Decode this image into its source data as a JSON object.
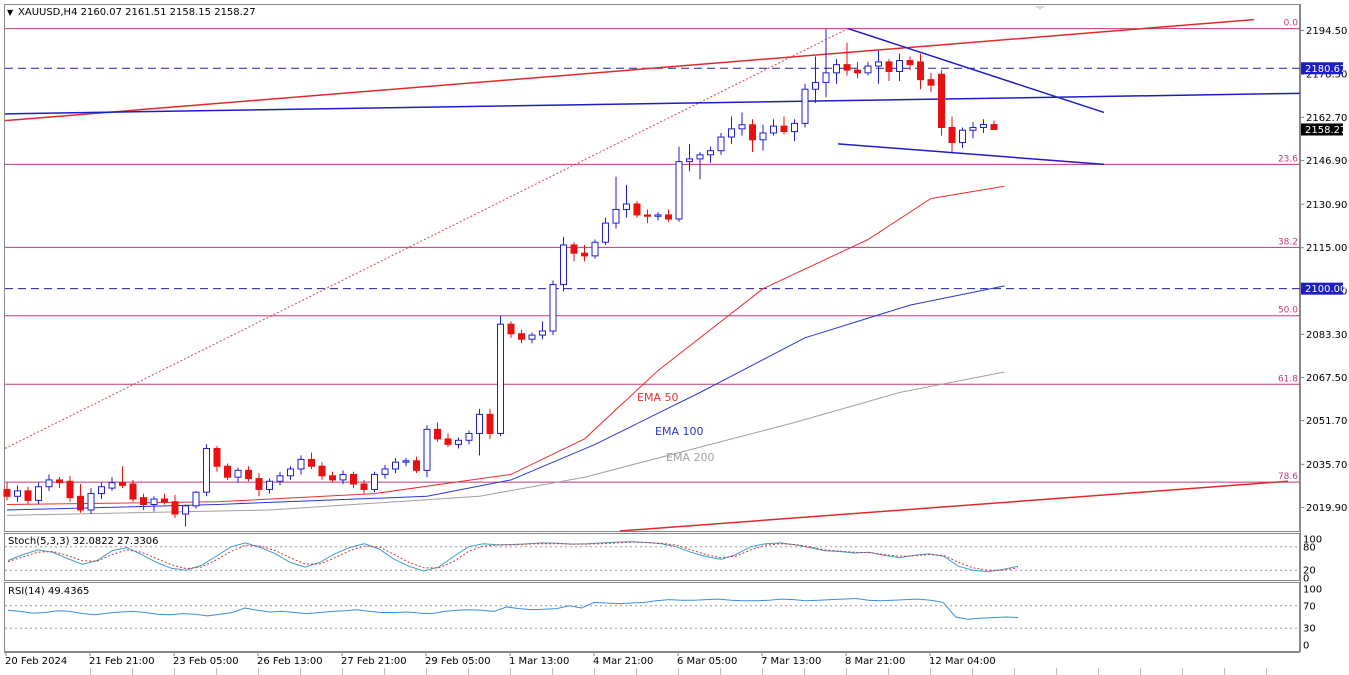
{
  "window": {
    "symbol_info": "XAUUSD,H4  2160.07 2161.51 2158.15 2158.27"
  },
  "chart_data": {
    "type": "candlestick",
    "symbol": "XAUUSD",
    "timeframe": "H4",
    "ohlc_last": {
      "open": 2160.07,
      "high": 2161.51,
      "low": 2158.15,
      "close": 2158.27
    },
    "price_axis_ticks": [
      "2194.50",
      "2178.50",
      "2162.70",
      "2146.90",
      "2130.90",
      "2115.00",
      "2099.10",
      "2083.30",
      "2067.50",
      "2051.70",
      "2035.70",
      "2019.90"
    ],
    "price_range": [
      2011,
      2199
    ],
    "tags": [
      {
        "price": 2180.67,
        "label": "2180.67",
        "kind": "hline-dashed"
      },
      {
        "price": 2158.27,
        "label": "2158.27",
        "kind": "current"
      },
      {
        "price": 2100.0,
        "label": "2100.00",
        "kind": "hline-dashed"
      }
    ],
    "fib_levels": [
      {
        "level": "0.0",
        "price": 2195.2
      },
      {
        "level": "23.6",
        "price": 2145.5
      },
      {
        "level": "38.2",
        "price": 2115.1
      },
      {
        "level": "50.0",
        "price": 2090.1
      },
      {
        "level": "61.8",
        "price": 2065.0
      },
      {
        "level": "78.6",
        "price": 2029.2
      }
    ],
    "time_labels": [
      "20 Feb 2024",
      "21 Feb 21:00",
      "23 Feb 05:00",
      "26 Feb 13:00",
      "27 Feb 21:00",
      "29 Feb 05:00",
      "1 Mar 13:00",
      "4 Mar 21:00",
      "6 Mar 05:00",
      "7 Mar 13:00",
      "8 Mar 21:00",
      "12 Mar 04:00"
    ],
    "ema_labels": {
      "ema50": "EMA 50",
      "ema100": "EMA 100",
      "ema200": "EMA 200"
    },
    "candles": [
      {
        "o": 2026.5,
        "h": 2029.0,
        "l": 2022.5,
        "c": 2024.0
      },
      {
        "o": 2024.0,
        "h": 2028.0,
        "l": 2022.0,
        "c": 2026.0
      },
      {
        "o": 2026.0,
        "h": 2027.5,
        "l": 2021.0,
        "c": 2022.5
      },
      {
        "o": 2022.5,
        "h": 2029.0,
        "l": 2021.0,
        "c": 2027.5
      },
      {
        "o": 2027.5,
        "h": 2032.0,
        "l": 2026.0,
        "c": 2030.0
      },
      {
        "o": 2030.0,
        "h": 2031.0,
        "l": 2027.0,
        "c": 2029.0
      },
      {
        "o": 2029.5,
        "h": 2031.5,
        "l": 2022.0,
        "c": 2023.5
      },
      {
        "o": 2024.0,
        "h": 2028.5,
        "l": 2018.0,
        "c": 2019.0
      },
      {
        "o": 2019.0,
        "h": 2027.0,
        "l": 2017.5,
        "c": 2025.0
      },
      {
        "o": 2025.0,
        "h": 2029.0,
        "l": 2023.0,
        "c": 2027.5
      },
      {
        "o": 2027.0,
        "h": 2031.0,
        "l": 2026.0,
        "c": 2029.0
      },
      {
        "o": 2029.0,
        "h": 2035.0,
        "l": 2027.0,
        "c": 2028.0
      },
      {
        "o": 2028.5,
        "h": 2030.0,
        "l": 2022.0,
        "c": 2023.0
      },
      {
        "o": 2023.5,
        "h": 2025.0,
        "l": 2019.0,
        "c": 2021.0
      },
      {
        "o": 2021.0,
        "h": 2024.0,
        "l": 2018.5,
        "c": 2023.0
      },
      {
        "o": 2023.0,
        "h": 2025.0,
        "l": 2021.0,
        "c": 2022.0
      },
      {
        "o": 2022.0,
        "h": 2024.5,
        "l": 2016.0,
        "c": 2017.5
      },
      {
        "o": 2017.5,
        "h": 2021.0,
        "l": 2013.0,
        "c": 2020.5
      },
      {
        "o": 2020.5,
        "h": 2026.0,
        "l": 2019.5,
        "c": 2025.5
      },
      {
        "o": 2025.5,
        "h": 2043.0,
        "l": 2024.0,
        "c": 2041.5
      },
      {
        "o": 2041.5,
        "h": 2042.5,
        "l": 2033.0,
        "c": 2035.0
      },
      {
        "o": 2035.0,
        "h": 2036.0,
        "l": 2030.0,
        "c": 2031.0
      },
      {
        "o": 2031.0,
        "h": 2034.5,
        "l": 2029.0,
        "c": 2033.5
      },
      {
        "o": 2033.5,
        "h": 2035.0,
        "l": 2029.5,
        "c": 2030.5
      },
      {
        "o": 2030.5,
        "h": 2032.5,
        "l": 2024.0,
        "c": 2026.5
      },
      {
        "o": 2026.5,
        "h": 2030.5,
        "l": 2025.0,
        "c": 2029.5
      },
      {
        "o": 2029.5,
        "h": 2033.0,
        "l": 2028.0,
        "c": 2031.5
      },
      {
        "o": 2031.5,
        "h": 2035.0,
        "l": 2030.0,
        "c": 2034.0
      },
      {
        "o": 2034.0,
        "h": 2039.0,
        "l": 2032.0,
        "c": 2037.5
      },
      {
        "o": 2037.5,
        "h": 2040.0,
        "l": 2034.0,
        "c": 2035.0
      },
      {
        "o": 2035.0,
        "h": 2036.5,
        "l": 2030.0,
        "c": 2031.5
      },
      {
        "o": 2031.5,
        "h": 2033.0,
        "l": 2029.0,
        "c": 2030.0
      },
      {
        "o": 2030.0,
        "h": 2033.5,
        "l": 2028.5,
        "c": 2032.0
      },
      {
        "o": 2032.0,
        "h": 2033.0,
        "l": 2027.0,
        "c": 2028.5
      },
      {
        "o": 2028.5,
        "h": 2030.0,
        "l": 2025.0,
        "c": 2026.5
      },
      {
        "o": 2026.5,
        "h": 2033.0,
        "l": 2025.5,
        "c": 2032.0
      },
      {
        "o": 2032.0,
        "h": 2035.5,
        "l": 2030.5,
        "c": 2034.0
      },
      {
        "o": 2034.0,
        "h": 2038.0,
        "l": 2032.5,
        "c": 2036.5
      },
      {
        "o": 2036.5,
        "h": 2038.0,
        "l": 2035.0,
        "c": 2037.0
      },
      {
        "o": 2037.0,
        "h": 2038.5,
        "l": 2032.5,
        "c": 2033.5
      },
      {
        "o": 2033.5,
        "h": 2050.0,
        "l": 2031.0,
        "c": 2048.5
      },
      {
        "o": 2048.5,
        "h": 2051.0,
        "l": 2044.0,
        "c": 2045.0
      },
      {
        "o": 2045.0,
        "h": 2047.0,
        "l": 2042.0,
        "c": 2043.0
      },
      {
        "o": 2043.0,
        "h": 2045.5,
        "l": 2041.5,
        "c": 2044.5
      },
      {
        "o": 2044.5,
        "h": 2048.0,
        "l": 2043.0,
        "c": 2047.0
      },
      {
        "o": 2047.0,
        "h": 2056.0,
        "l": 2039.0,
        "c": 2054.0
      },
      {
        "o": 2054.0,
        "h": 2056.0,
        "l": 2045.0,
        "c": 2047.0
      },
      {
        "o": 2047.0,
        "h": 2090.0,
        "l": 2046.0,
        "c": 2087.0
      },
      {
        "o": 2087.0,
        "h": 2088.0,
        "l": 2082.0,
        "c": 2083.5
      },
      {
        "o": 2083.5,
        "h": 2085.0,
        "l": 2080.0,
        "c": 2081.5
      },
      {
        "o": 2081.5,
        "h": 2084.0,
        "l": 2080.0,
        "c": 2083.0
      },
      {
        "o": 2083.0,
        "h": 2088.0,
        "l": 2081.5,
        "c": 2084.5
      },
      {
        "o": 2084.5,
        "h": 2103.0,
        "l": 2083.0,
        "c": 2101.5
      },
      {
        "o": 2101.5,
        "h": 2119.0,
        "l": 2099.0,
        "c": 2116.0
      },
      {
        "o": 2116.0,
        "h": 2117.0,
        "l": 2110.0,
        "c": 2113.0
      },
      {
        "o": 2113.0,
        "h": 2116.0,
        "l": 2110.0,
        "c": 2112.0
      },
      {
        "o": 2112.0,
        "h": 2118.0,
        "l": 2111.0,
        "c": 2117.0
      },
      {
        "o": 2117.0,
        "h": 2126.0,
        "l": 2116.0,
        "c": 2124.0
      },
      {
        "o": 2124.0,
        "h": 2141.0,
        "l": 2122.0,
        "c": 2129.0
      },
      {
        "o": 2129.0,
        "h": 2138.0,
        "l": 2126.0,
        "c": 2131.0
      },
      {
        "o": 2131.0,
        "h": 2132.0,
        "l": 2126.0,
        "c": 2127.0
      },
      {
        "o": 2127.0,
        "h": 2129.0,
        "l": 2124.0,
        "c": 2126.5
      },
      {
        "o": 2126.5,
        "h": 2128.0,
        "l": 2125.0,
        "c": 2127.0
      },
      {
        "o": 2127.0,
        "h": 2129.0,
        "l": 2124.5,
        "c": 2125.5
      },
      {
        "o": 2125.5,
        "h": 2152.0,
        "l": 2124.5,
        "c": 2146.5
      },
      {
        "o": 2146.5,
        "h": 2153.0,
        "l": 2143.0,
        "c": 2147.5
      },
      {
        "o": 2147.5,
        "h": 2150.0,
        "l": 2140.0,
        "c": 2149.0
      },
      {
        "o": 2149.0,
        "h": 2152.0,
        "l": 2146.0,
        "c": 2150.5
      },
      {
        "o": 2150.5,
        "h": 2157.0,
        "l": 2149.0,
        "c": 2155.5
      },
      {
        "o": 2155.5,
        "h": 2163.0,
        "l": 2153.0,
        "c": 2158.5
      },
      {
        "o": 2158.5,
        "h": 2164.5,
        "l": 2156.0,
        "c": 2160.0
      },
      {
        "o": 2160.0,
        "h": 2162.0,
        "l": 2150.0,
        "c": 2154.5
      },
      {
        "o": 2154.5,
        "h": 2160.0,
        "l": 2150.5,
        "c": 2157.0
      },
      {
        "o": 2157.0,
        "h": 2162.0,
        "l": 2156.0,
        "c": 2159.5
      },
      {
        "o": 2159.5,
        "h": 2163.0,
        "l": 2156.5,
        "c": 2157.5
      },
      {
        "o": 2157.5,
        "h": 2162.0,
        "l": 2154.0,
        "c": 2160.5
      },
      {
        "o": 2160.5,
        "h": 2175.0,
        "l": 2159.0,
        "c": 2173.0
      },
      {
        "o": 2173.0,
        "h": 2185.0,
        "l": 2168.0,
        "c": 2175.5
      },
      {
        "o": 2175.5,
        "h": 2195.2,
        "l": 2170.0,
        "c": 2179.0
      },
      {
        "o": 2179.0,
        "h": 2184.0,
        "l": 2175.0,
        "c": 2182.0
      },
      {
        "o": 2182.0,
        "h": 2190.0,
        "l": 2178.0,
        "c": 2180.0
      },
      {
        "o": 2180.0,
        "h": 2183.0,
        "l": 2177.0,
        "c": 2179.0
      },
      {
        "o": 2179.0,
        "h": 2183.0,
        "l": 2178.0,
        "c": 2181.5
      },
      {
        "o": 2181.5,
        "h": 2187.0,
        "l": 2175.0,
        "c": 2183.0
      },
      {
        "o": 2183.0,
        "h": 2184.0,
        "l": 2176.0,
        "c": 2179.5
      },
      {
        "o": 2179.5,
        "h": 2186.0,
        "l": 2176.0,
        "c": 2183.5
      },
      {
        "o": 2183.5,
        "h": 2185.0,
        "l": 2180.0,
        "c": 2182.0
      },
      {
        "o": 2183.0,
        "h": 2186.0,
        "l": 2173.0,
        "c": 2176.5
      },
      {
        "o": 2176.5,
        "h": 2179.0,
        "l": 2172.0,
        "c": 2174.5
      },
      {
        "o": 2178.5,
        "h": 2180.0,
        "l": 2156.0,
        "c": 2159.0
      },
      {
        "o": 2159.0,
        "h": 2163.0,
        "l": 2150.0,
        "c": 2153.5
      },
      {
        "o": 2153.5,
        "h": 2159.0,
        "l": 2151.5,
        "c": 2158.0
      },
      {
        "o": 2158.0,
        "h": 2161.0,
        "l": 2155.0,
        "c": 2159.0
      },
      {
        "o": 2159.0,
        "h": 2162.0,
        "l": 2157.0,
        "c": 2160.07
      },
      {
        "o": 2160.07,
        "h": 2161.51,
        "l": 2158.15,
        "c": 2158.27
      }
    ],
    "ema50": [
      [
        0,
        2021
      ],
      [
        20,
        2022
      ],
      [
        35,
        2025
      ],
      [
        48,
        2032
      ],
      [
        55,
        2045
      ],
      [
        62,
        2070
      ],
      [
        72,
        2100
      ],
      [
        82,
        2118
      ],
      [
        88,
        2133
      ],
      [
        95,
        2137.5
      ]
    ],
    "ema100": [
      [
        0,
        2019
      ],
      [
        20,
        2021
      ],
      [
        40,
        2024
      ],
      [
        48,
        2030
      ],
      [
        56,
        2043
      ],
      [
        66,
        2062
      ],
      [
        76,
        2082
      ],
      [
        86,
        2094
      ],
      [
        95,
        2101
      ]
    ],
    "ema200": [
      [
        0,
        2017
      ],
      [
        25,
        2019
      ],
      [
        45,
        2024
      ],
      [
        55,
        2031
      ],
      [
        65,
        2041
      ],
      [
        75,
        2051
      ],
      [
        85,
        2062
      ],
      [
        95,
        2069.5
      ]
    ],
    "stochastic": {
      "label": "Stoch(5,3,3) 32.0822 27.3306",
      "levels": [
        80,
        20
      ],
      "ticks": [
        "100",
        "80",
        "20",
        "0"
      ],
      "main": [
        45,
        60,
        72,
        66,
        50,
        35,
        45,
        70,
        78,
        60,
        40,
        25,
        20,
        32,
        55,
        80,
        90,
        78,
        62,
        40,
        28,
        40,
        62,
        78,
        88,
        74,
        48,
        30,
        18,
        28,
        55,
        80,
        88,
        85,
        86,
        88,
        90,
        89,
        87,
        88,
        90,
        92,
        93,
        91,
        88,
        80,
        66,
        55,
        48,
        60,
        80,
        88,
        90,
        85,
        78,
        70,
        68,
        64,
        66,
        58,
        52,
        58,
        62,
        56,
        30,
        20,
        16,
        22,
        30
      ],
      "signal": [
        42,
        54,
        66,
        68,
        58,
        44,
        43,
        60,
        72,
        66,
        50,
        34,
        24,
        28,
        46,
        68,
        84,
        82,
        70,
        52,
        36,
        36,
        52,
        70,
        82,
        80,
        60,
        40,
        26,
        26,
        42,
        68,
        82,
        85,
        85,
        87,
        88,
        88,
        87,
        87,
        88,
        90,
        92,
        91,
        89,
        84,
        72,
        60,
        52,
        56,
        72,
        84,
        88,
        86,
        80,
        72,
        69,
        66,
        65,
        60,
        56,
        57,
        60,
        58,
        40,
        26,
        20,
        20,
        26
      ]
    },
    "rsi": {
      "label": "RSI(14) 49.4365",
      "levels": [
        70,
        30
      ],
      "ticks": [
        "100",
        "70",
        "30",
        "0"
      ],
      "values": [
        62,
        60,
        57,
        58,
        61,
        60,
        56,
        54,
        57,
        59,
        60,
        58,
        55,
        54,
        56,
        55,
        52,
        55,
        58,
        66,
        62,
        59,
        60,
        58,
        56,
        58,
        60,
        61,
        63,
        60,
        58,
        58,
        59,
        57,
        56,
        60,
        62,
        63,
        62,
        60,
        68,
        65,
        63,
        64,
        65,
        70,
        66,
        76,
        75,
        74,
        75,
        76,
        79,
        81,
        80,
        80,
        81,
        82,
        80,
        79,
        79,
        80,
        82,
        81,
        79,
        80,
        81,
        82,
        83,
        80,
        79,
        80,
        81,
        82,
        80,
        76,
        50,
        46,
        48,
        49,
        50,
        49
      ]
    }
  },
  "colors": {
    "bull": "#1f1fd6",
    "bear": "#e81010",
    "trend_red": "#e02a2a",
    "trend_blue": "#1d1dc8",
    "fib": "#c0387a",
    "ema50": "#e83030",
    "ema100": "#2838d0",
    "ema200": "#a0a0a0",
    "stoch_main": "#3aa0d0",
    "stoch_signal": "#e03030",
    "rsi": "#3a8ee0"
  }
}
